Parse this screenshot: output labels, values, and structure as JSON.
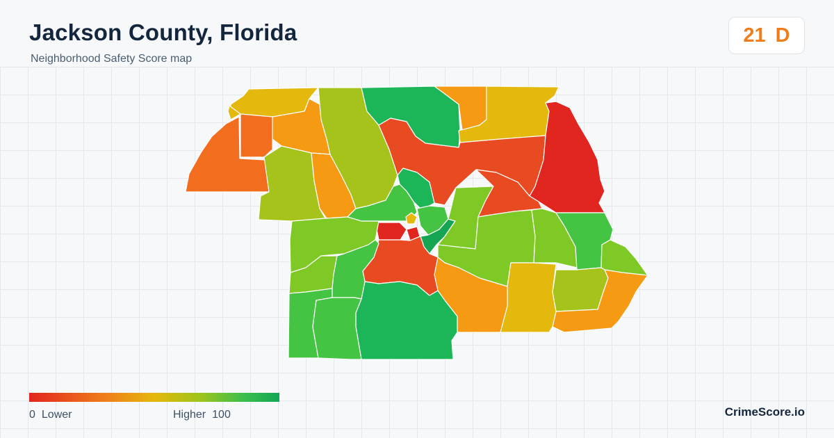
{
  "header": {
    "title": "Jackson County, Florida",
    "subtitle": "Neighborhood Safety Score map"
  },
  "score": {
    "value": "21",
    "grade": "D",
    "color": "#ef7d1a"
  },
  "legend": {
    "min_value": "0",
    "min_label": "Lower",
    "max_label": "Higher",
    "max_value": "100",
    "colors": [
      "#e1251f",
      "#ef7d1a",
      "#e4b80d",
      "#a0c41a",
      "#3fbf4a",
      "#12a657"
    ]
  },
  "brand": {
    "label": "CrimeScore.io"
  },
  "map": {
    "region_colors": {
      "red": "#e1251f",
      "red_orange": "#e84b22",
      "orange": "#f36d1f",
      "amber": "#f59a12",
      "yellow": "#e4b80d",
      "olive": "#a5c31a",
      "light_green": "#7fc926",
      "green": "#45c443",
      "deep_green": "#1cb558",
      "teal_green": "#15a553"
    }
  }
}
